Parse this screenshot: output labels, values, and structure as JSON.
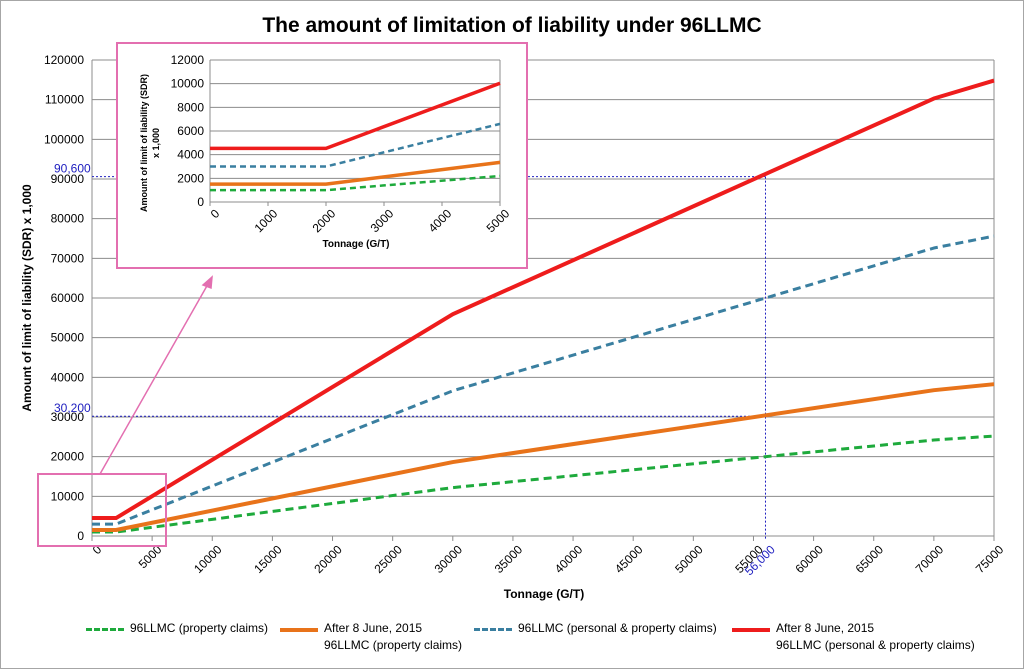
{
  "chart_data": {
    "type": "line",
    "title": "The amount of limitation of liability under 96LLMC",
    "xlabel": "Tonnage (G/T)",
    "ylabel": "Amount of limit of liability (SDR) x 1,000",
    "xlim": [
      0,
      75000
    ],
    "ylim": [
      0,
      120000
    ],
    "xticks": [
      "0",
      "5000",
      "10000",
      "15000",
      "20000",
      "25000",
      "30000",
      "35000",
      "40000",
      "45000",
      "50000",
      "55000",
      "60000",
      "65000",
      "70000",
      "75000"
    ],
    "yticks": [
      "0",
      "10000",
      "20000",
      "30000",
      "40000",
      "50000",
      "60000",
      "70000",
      "80000",
      "90000",
      "100000",
      "110000",
      "120000"
    ],
    "grid": "horizontal",
    "legend_position": "bottom",
    "series": [
      {
        "name": "96LLMC (property claims)",
        "color": "#1eaa3c",
        "style": "dashed",
        "x": [
          0,
          2000,
          30000,
          70000,
          75000
        ],
        "y": [
          1000,
          1000,
          12200,
          24200,
          25200
        ]
      },
      {
        "name": "After 8 June, 2015 96LLMC (property claims)",
        "color": "#e8731a",
        "style": "solid",
        "x": [
          0,
          2000,
          30000,
          70000,
          75000
        ],
        "y": [
          1510,
          1510,
          18640,
          36760,
          38270
        ]
      },
      {
        "name": "96LLMC (personal & property claims)",
        "color": "#3a7fa0",
        "style": "dashed",
        "x": [
          0,
          2000,
          30000,
          70000,
          75000
        ],
        "y": [
          3000,
          3000,
          36600,
          72600,
          75600
        ]
      },
      {
        "name": "After 8 June, 2015 96LLMC (personal & property claims)",
        "color": "#ee1c1c",
        "style": "solid",
        "x": [
          0,
          2000,
          30000,
          70000,
          75000
        ],
        "y": [
          4530,
          4530,
          55920,
          110290,
          114820
        ]
      }
    ],
    "annotations": [
      {
        "label": "90,600",
        "axis": "y",
        "value": 90600
      },
      {
        "label": "30,200",
        "axis": "y",
        "value": 30200
      },
      {
        "label": "56,000",
        "axis": "x",
        "value": 56000
      }
    ],
    "inset": {
      "xlabel": "Tonnage (G/T)",
      "ylabel": "Amount of limit of liability (SDR) x 1,000",
      "xlim": [
        0,
        5000
      ],
      "ylim": [
        0,
        12000
      ],
      "xticks": [
        "0",
        "1000",
        "2000",
        "3000",
        "4000",
        "5000"
      ],
      "yticks": [
        "0",
        "2000",
        "4000",
        "6000",
        "8000",
        "10000",
        "12000"
      ]
    }
  }
}
